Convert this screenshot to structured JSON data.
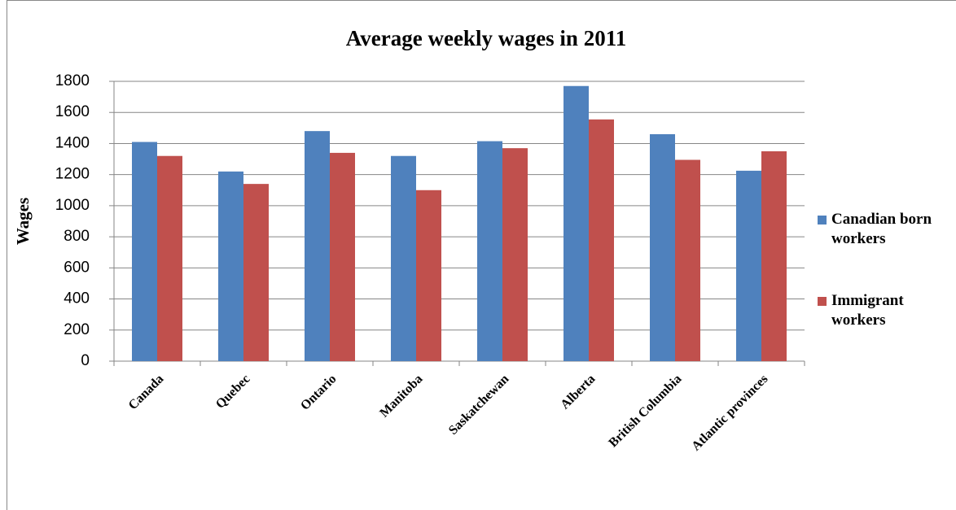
{
  "chart_data": {
    "type": "bar",
    "title": "Average weekly wages in 2011",
    "y_label": "Wages",
    "categories": [
      "Canada",
      "Quebec",
      "Ontario",
      "Manitoba",
      "Saskatchewan",
      "Alberta",
      "British Columbia",
      "Atlantic provinces"
    ],
    "series": [
      {
        "name": "Canadian born workers",
        "color": "#4f81bd",
        "values": [
          1410,
          1220,
          1480,
          1320,
          1415,
          1770,
          1460,
          1225
        ]
      },
      {
        "name": "Immigrant workers",
        "color": "#c0504d",
        "values": [
          1320,
          1140,
          1340,
          1100,
          1370,
          1555,
          1295,
          1350
        ]
      }
    ],
    "ylim": [
      0,
      1800
    ],
    "yticks": [
      0,
      200,
      400,
      600,
      800,
      1000,
      1200,
      1400,
      1600,
      1800
    ],
    "grid": true,
    "legend": "right"
  }
}
